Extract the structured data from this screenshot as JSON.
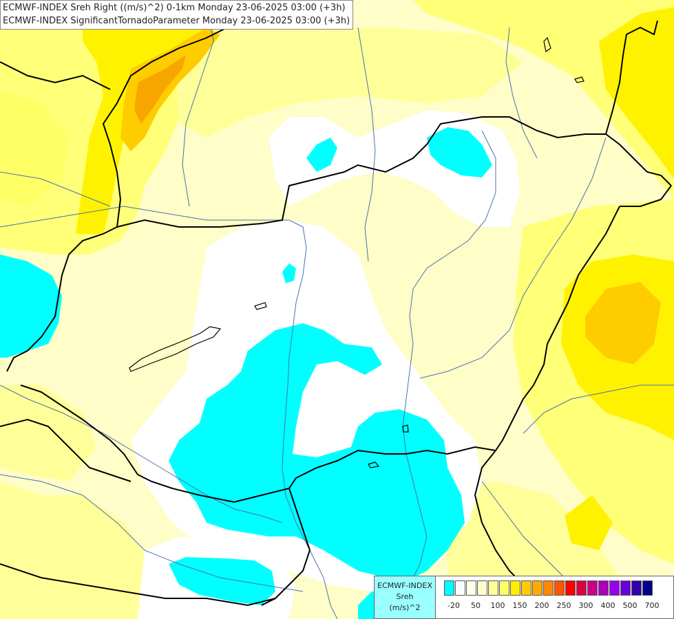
{
  "title_lines": [
    "ECMWF-INDEX Sreh Right ((m/s)^2) 0-1km Monday 23-06-2025 03:00 (+3h)",
    "ECMWF-INDEX SignificantTornadoParameter Monday 23-06-2025 03:00 (+3h)"
  ],
  "legend": {
    "line1": "ECMWF-INDEX",
    "line2": "Sreh",
    "line3": "(m/s)^2",
    "colors": [
      "#00ffff",
      "#ffffff",
      "#ffffee",
      "#ffffcc",
      "#ffff99",
      "#ffff66",
      "#ffee00",
      "#ffcc00",
      "#ffaa00",
      "#ff8800",
      "#ff5500",
      "#ff0000",
      "#dd0044",
      "#cc0088",
      "#aa00bb",
      "#9900ee",
      "#6600dd",
      "#3300aa",
      "#000088"
    ],
    "tick_labels": [
      "-20",
      "50",
      "100",
      "150",
      "200",
      "250",
      "300",
      "400",
      "500",
      "700"
    ]
  },
  "fields": {
    "background": "#fffdc8",
    "cyan": "#00ffff",
    "white": "#ffffff",
    "yellow": "#ffff66",
    "yellow2": "#fff200",
    "orange": "#ffcc00",
    "deep_orange": "#f7a600",
    "border": "#000000",
    "river": "#4466aa"
  }
}
